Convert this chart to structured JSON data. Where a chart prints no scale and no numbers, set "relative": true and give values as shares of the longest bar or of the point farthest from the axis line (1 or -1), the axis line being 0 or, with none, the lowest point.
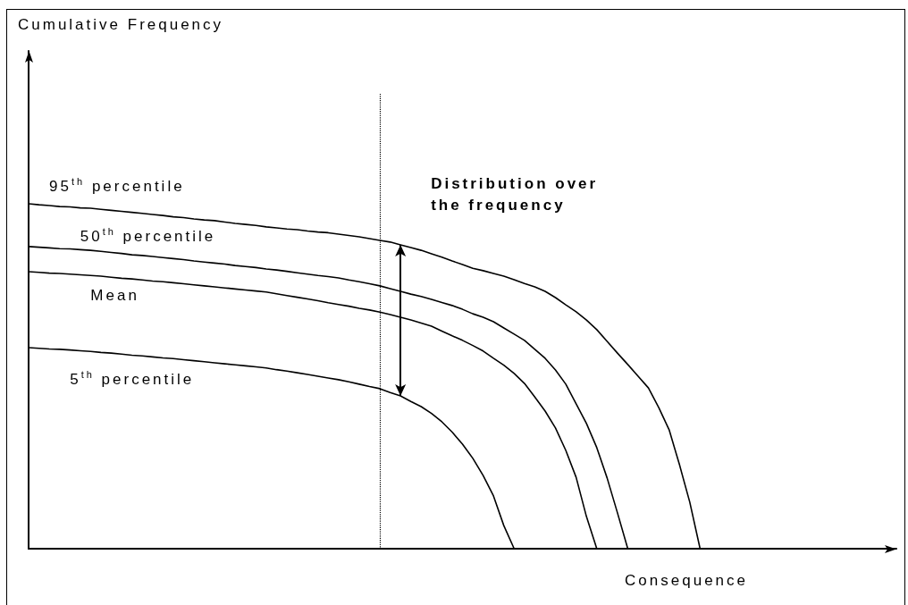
{
  "chart_data": {
    "type": "line",
    "relative": true,
    "xlabel": "Consequence",
    "categories": [
      null,
      null,
      null,
      null,
      null,
      null,
      null,
      null,
      null,
      null,
      null,
      null,
      null,
      null,
      null,
      null,
      null,
      null,
      null,
      null,
      null,
      null,
      null,
      null,
      null,
      null,
      null,
      null,
      null,
      null,
      null,
      null,
      null,
      null,
      null,
      null,
      null,
      null,
      null,
      null,
      null,
      null,
      null,
      null,
      null,
      null,
      null,
      null,
      null,
      null,
      null,
      null,
      null,
      null,
      null,
      null,
      null,
      null,
      null,
      null,
      null,
      null,
      null,
      null,
      null,
      null,
      null,
      null,
      null,
      null,
      null,
      null,
      null,
      null,
      null,
      null,
      null,
      null,
      null,
      null,
      null,
      null,
      null,
      null,
      null
    ],
    "series": [
      {
        "name": "95$^{th}$ percentile",
        "color": "#000000",
        "values": [
          1,
          0.997,
          0.995,
          0.992,
          0.991,
          0.988,
          0.987,
          0.984,
          0.981,
          0.978,
          0.975,
          0.972,
          0.969,
          0.966,
          0.962,
          0.96,
          0.956,
          0.953,
          0.951,
          0.947,
          0.943,
          0.94,
          0.937,
          0.933,
          0.93,
          0.927,
          0.925,
          0.921,
          0.918,
          0.916,
          0.912,
          0.908,
          0.904,
          0.899,
          0.894,
          0.889,
          0.881,
          0.873,
          0.865,
          0.855,
          0.845,
          0.834,
          0.824,
          0.813,
          0.806,
          0.798,
          0.79,
          0.78,
          0.769,
          0.759,
          0.746,
          0.728,
          0.707,
          0.687,
          0.663,
          0.635,
          0.601,
          0.567,
          0.534,
          0.5,
          0.466,
          0.409,
          0.345,
          0.244,
          0.135,
          0,
          null,
          null,
          null,
          null,
          null,
          null,
          null,
          null,
          null,
          null,
          null,
          null,
          null,
          null,
          null,
          null,
          null,
          null,
          null
        ]
      },
      {
        "name": "50$^{th}$ percentile",
        "color": "#000000",
        "values": [
          0.876,
          0.874,
          0.872,
          0.87,
          0.869,
          0.867,
          0.865,
          0.862,
          0.859,
          0.856,
          0.852,
          0.85,
          0.847,
          0.844,
          0.841,
          0.838,
          0.834,
          0.831,
          0.828,
          0.825,
          0.821,
          0.818,
          0.815,
          0.811,
          0.808,
          0.804,
          0.8,
          0.796,
          0.792,
          0.789,
          0.785,
          0.779,
          0.774,
          0.768,
          0.762,
          0.754,
          0.746,
          0.738,
          0.731,
          0.723,
          0.714,
          0.705,
          0.694,
          0.681,
          0.671,
          0.658,
          0.64,
          0.622,
          0.604,
          0.578,
          0.552,
          0.518,
          0.477,
          0.42,
          0.363,
          0.293,
          0.205,
          0.104,
          0,
          null,
          null,
          null,
          null,
          null,
          null,
          null,
          null,
          null,
          null,
          null,
          null,
          null,
          null,
          null,
          null,
          null,
          null,
          null,
          null,
          null,
          null,
          null,
          null,
          null,
          null
        ]
      },
      {
        "name": "Mean",
        "color": "#000000",
        "values": [
          0.803,
          0.801,
          0.799,
          0.798,
          0.796,
          0.794,
          0.792,
          0.79,
          0.787,
          0.784,
          0.782,
          0.779,
          0.776,
          0.774,
          0.771,
          0.768,
          0.765,
          0.762,
          0.759,
          0.756,
          0.753,
          0.75,
          0.747,
          0.744,
          0.739,
          0.734,
          0.729,
          0.724,
          0.719,
          0.713,
          0.708,
          0.703,
          0.697,
          0.692,
          0.686,
          0.679,
          0.671,
          0.663,
          0.654,
          0.645,
          0.631,
          0.617,
          0.604,
          0.589,
          0.573,
          0.552,
          0.532,
          0.508,
          0.479,
          0.44,
          0.399,
          0.35,
          0.285,
          0.207,
          0.093,
          0,
          null,
          null,
          null,
          null,
          null,
          null,
          null,
          null,
          null,
          null,
          null,
          null,
          null,
          null,
          null,
          null,
          null,
          null,
          null,
          null,
          null,
          null,
          null,
          null,
          null,
          null,
          null,
          null,
          null
        ]
      },
      {
        "name": "5$^{th}$ percentile",
        "color": "#000000",
        "values": [
          0.583,
          0.581,
          0.579,
          0.578,
          0.576,
          0.574,
          0.572,
          0.569,
          0.567,
          0.564,
          0.561,
          0.559,
          0.556,
          0.553,
          0.551,
          0.548,
          0.545,
          0.542,
          0.539,
          0.536,
          0.533,
          0.53,
          0.527,
          0.524,
          0.519,
          0.515,
          0.51,
          0.505,
          0.5,
          0.495,
          0.49,
          0.484,
          0.477,
          0.47,
          0.464,
          0.453,
          0.443,
          0.427,
          0.412,
          0.392,
          0.368,
          0.338,
          0.303,
          0.262,
          0.212,
          0.153,
          0.067,
          0,
          null,
          null,
          null,
          null,
          null,
          null,
          null,
          null,
          null,
          null,
          null,
          null,
          null,
          null,
          null,
          null,
          null,
          null,
          null,
          null,
          null,
          null,
          null,
          null,
          null,
          null,
          null,
          null,
          null,
          null,
          null,
          null,
          null,
          null,
          null,
          null,
          null
        ]
      }
    ],
    "annotations": [
      "Cumulative Frequency",
      "Distribution over the frequency"
    ],
    "legend": false,
    "grid": false,
    "marker": "none",
    "line_style": "solid"
  }
}
